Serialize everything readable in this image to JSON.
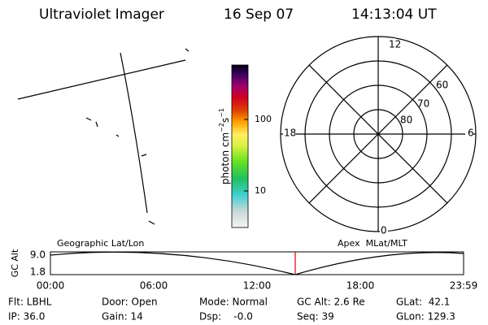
{
  "header": {
    "title": "Ultraviolet Imager",
    "date": "16 Sep 07",
    "time": "14:13:04 UT"
  },
  "colorbar": {
    "label": [
      "photon cm",
      "−2",
      "s",
      "−1"
    ],
    "ticks": [
      "100",
      "10"
    ]
  },
  "polar": {
    "mlt_labels": [
      "12",
      "18",
      "6",
      "0"
    ],
    "lat_labels": [
      "60",
      "70",
      "80"
    ]
  },
  "altitude": {
    "left_label": "Geographic Lat/Lon",
    "right_label": "Apex  MLat/MLT",
    "y_title": "GC Alt",
    "yticks": [
      "9.0",
      "1.8"
    ],
    "xticks": [
      "00:00",
      "06:00",
      "12:00",
      "18:00",
      "23:59"
    ]
  },
  "info": {
    "rows": [
      [
        "Flt: LBHL",
        "Door: Open",
        "Mode: Normal",
        "GC Alt: 2.6 Re",
        "GLat:  42.1"
      ],
      [
        "IP: 36.0",
        "Gain: 14",
        "Dsp:    -0.0",
        "Seq: 39",
        "GLon: 129.3"
      ]
    ]
  }
}
